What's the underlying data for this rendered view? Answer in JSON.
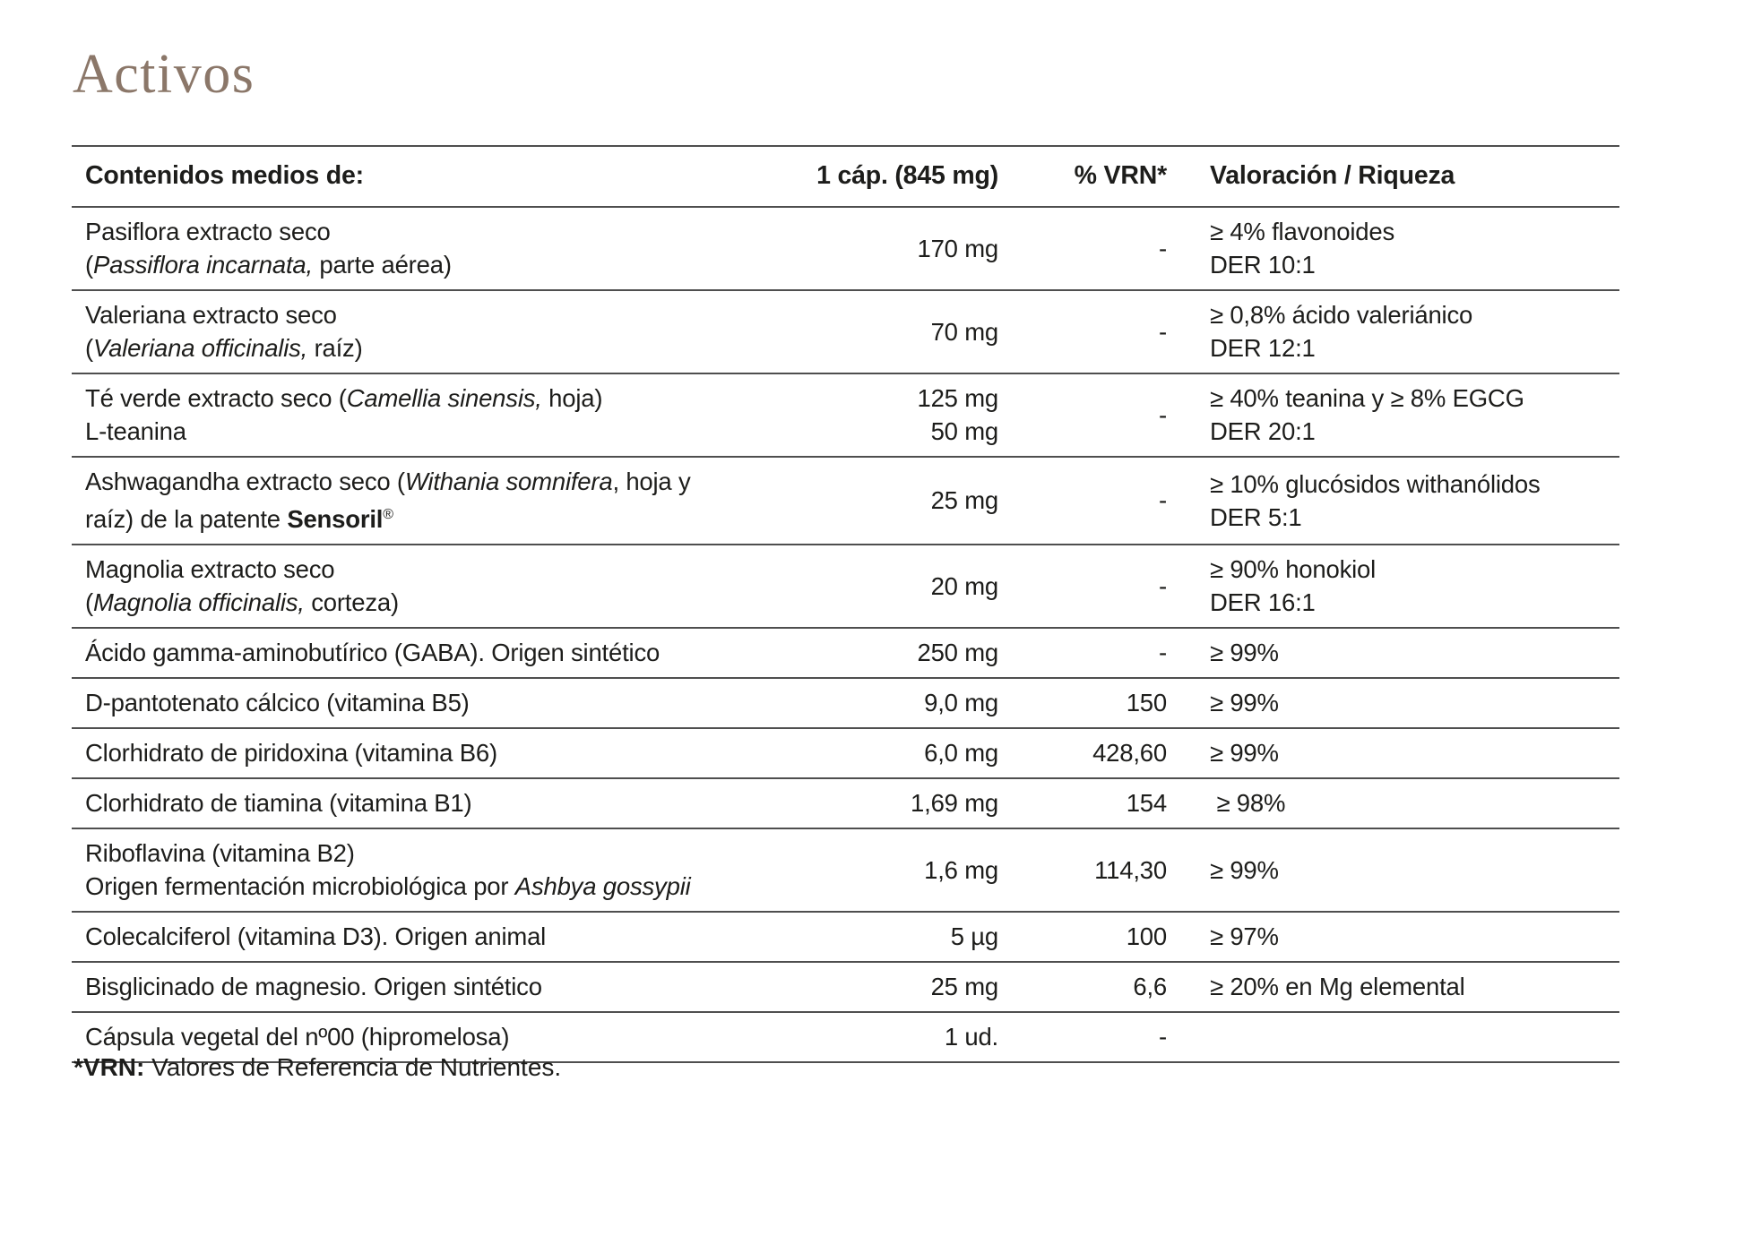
{
  "page": {
    "title": "Activos",
    "title_color": "#8b7769",
    "text_color": "#1d1d1b",
    "line_color": "#4f4f4f",
    "background": "#ffffff"
  },
  "table": {
    "columns": [
      {
        "label": "Contenidos medios de:"
      },
      {
        "label": "1 cáp. (845 mg)"
      },
      {
        "label": "% VRN*"
      },
      {
        "label": "Valoración / Riqueza"
      }
    ],
    "rows": [
      {
        "name": [
          [
            {
              "t": "Pasiflora extracto seco"
            }
          ],
          [
            {
              "t": "("
            },
            {
              "t": "Passiflora incarnata,",
              "i": true
            },
            {
              "t": " parte aérea)"
            }
          ]
        ],
        "amounts": [
          "170 mg"
        ],
        "vrn": "-",
        "valoracion": [
          "≥ 4% flavonoides",
          "DER 10:1"
        ]
      },
      {
        "name": [
          [
            {
              "t": "Valeriana extracto seco"
            }
          ],
          [
            {
              "t": "("
            },
            {
              "t": "Valeriana officinalis,",
              "i": true
            },
            {
              "t": " raíz)"
            }
          ]
        ],
        "amounts": [
          "70 mg"
        ],
        "vrn": "-",
        "valoracion": [
          "≥ 0,8% ácido valeriánico",
          "DER 12:1"
        ]
      },
      {
        "name": [
          [
            {
              "t": "Té verde extracto seco ("
            },
            {
              "t": "Camellia sinensis,",
              "i": true
            },
            {
              "t": " hoja)"
            }
          ],
          [
            {
              "t": "L-teanina"
            }
          ]
        ],
        "amounts": [
          "125 mg",
          "50 mg"
        ],
        "vrn": "-",
        "valoracion": [
          "≥ 40% teanina y ≥ 8% EGCG",
          "DER 20:1"
        ]
      },
      {
        "name": [
          [
            {
              "t": "Ashwagandha extracto seco ("
            },
            {
              "t": "Withania somnifera",
              "i": true
            },
            {
              "t": ", hoja y"
            }
          ],
          [
            {
              "t": "raíz) de la patente "
            },
            {
              "t": "Sensoril",
              "b": true
            },
            {
              "t": "®",
              "sup": true
            }
          ]
        ],
        "amounts": [
          "25 mg"
        ],
        "vrn": "-",
        "valoracion": [
          "≥ 10% glucósidos withanólidos",
          "DER 5:1"
        ]
      },
      {
        "name": [
          [
            {
              "t": "Magnolia extracto seco"
            }
          ],
          [
            {
              "t": "("
            },
            {
              "t": "Magnolia officinalis,",
              "i": true
            },
            {
              "t": " corteza)"
            }
          ]
        ],
        "amounts": [
          "20 mg"
        ],
        "vrn": "-",
        "valoracion": [
          "≥ 90% honokiol",
          "DER 16:1"
        ]
      },
      {
        "name": [
          [
            {
              "t": "Ácido gamma-aminobutírico (GABA). Origen sintético"
            }
          ]
        ],
        "amounts": [
          "250 mg"
        ],
        "vrn": "-",
        "valoracion": [
          "≥ 99%"
        ]
      },
      {
        "name": [
          [
            {
              "t": "D-pantotenato cálcico (vitamina B5)"
            }
          ]
        ],
        "amounts": [
          "9,0 mg"
        ],
        "vrn": "150",
        "valoracion": [
          "≥ 99%"
        ]
      },
      {
        "name": [
          [
            {
              "t": "Clorhidrato de piridoxina (vitamina B6)"
            }
          ]
        ],
        "amounts": [
          "6,0 mg"
        ],
        "vrn": "428,60",
        "valoracion": [
          "≥ 99%"
        ]
      },
      {
        "name": [
          [
            {
              "t": "Clorhidrato de tiamina (vitamina B1)"
            }
          ]
        ],
        "amounts": [
          "1,69 mg"
        ],
        "vrn": "154",
        "valoracion": [
          " ≥ 98%"
        ]
      },
      {
        "name": [
          [
            {
              "t": "Riboflavina (vitamina B2)"
            }
          ],
          [
            {
              "t": "Origen fermentación microbiológica por "
            },
            {
              "t": "Ashbya gossypii",
              "i": true
            }
          ]
        ],
        "amounts": [
          "1,6 mg"
        ],
        "vrn": "114,30",
        "valoracion": [
          "≥ 99%"
        ]
      },
      {
        "name": [
          [
            {
              "t": "Colecalciferol (vitamina D3). Origen animal"
            }
          ]
        ],
        "amounts": [
          "5 µg"
        ],
        "vrn": "100",
        "valoracion": [
          "≥ 97%"
        ]
      },
      {
        "name": [
          [
            {
              "t": "Bisglicinado de magnesio. Origen sintético"
            }
          ]
        ],
        "amounts": [
          "25 mg"
        ],
        "vrn": "6,6",
        "valoracion": [
          "≥ 20% en Mg elemental"
        ]
      },
      {
        "name": [
          [
            {
              "t": "Cápsula vegetal del nº00 (hipromelosa)"
            }
          ]
        ],
        "amounts": [
          "1 ud."
        ],
        "vrn": "-",
        "valoracion": []
      }
    ]
  },
  "footnote": {
    "bold": "*VRN:",
    "rest": " Valores de Referencia de Nutrientes."
  }
}
